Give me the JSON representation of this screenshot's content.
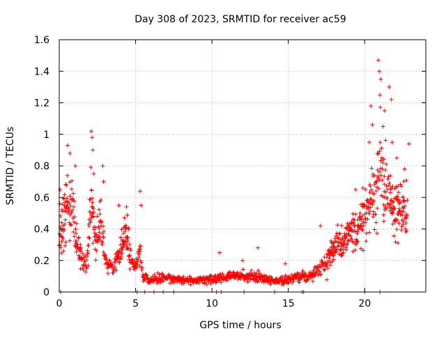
{
  "chart_data": {
    "type": "scatter",
    "title": "Day 308 of 2023, SRMTID for receiver ac59",
    "xlabel": "GPS time / hours",
    "ylabel": "SRMTID / TECUs",
    "xlim": [
      0,
      24
    ],
    "ylim": [
      0,
      1.6
    ],
    "grid": true,
    "marker": "+",
    "color": "#ff0000",
    "x_ticks": [
      "0",
      "5",
      "10",
      "15",
      "20"
    ],
    "y_ticks": [
      "0",
      "0.2",
      "0.4",
      "0.6",
      "0.8",
      "1",
      "1.2",
      "1.4",
      "1.6"
    ],
    "series": [
      {
        "name": "SRMTID",
        "profile": [
          {
            "x": 0.0,
            "y": 0.35
          },
          {
            "x": 0.3,
            "y": 0.5
          },
          {
            "x": 0.6,
            "y": 0.6
          },
          {
            "x": 0.9,
            "y": 0.55
          },
          {
            "x": 1.1,
            "y": 0.35
          },
          {
            "x": 1.5,
            "y": 0.2
          },
          {
            "x": 1.8,
            "y": 0.15
          },
          {
            "x": 2.0,
            "y": 0.5
          },
          {
            "x": 2.1,
            "y": 0.6
          },
          {
            "x": 2.4,
            "y": 0.3
          },
          {
            "x": 2.7,
            "y": 0.5
          },
          {
            "x": 3.0,
            "y": 0.2
          },
          {
            "x": 3.5,
            "y": 0.15
          },
          {
            "x": 4.0,
            "y": 0.25
          },
          {
            "x": 4.4,
            "y": 0.4
          },
          {
            "x": 4.7,
            "y": 0.2
          },
          {
            "x": 5.0,
            "y": 0.15
          },
          {
            "x": 5.3,
            "y": 0.25
          },
          {
            "x": 5.5,
            "y": 0.1
          },
          {
            "x": 6.0,
            "y": 0.08
          },
          {
            "x": 7.0,
            "y": 0.09
          },
          {
            "x": 8.0,
            "y": 0.08
          },
          {
            "x": 9.0,
            "y": 0.07
          },
          {
            "x": 10.0,
            "y": 0.08
          },
          {
            "x": 11.0,
            "y": 0.1
          },
          {
            "x": 12.0,
            "y": 0.1
          },
          {
            "x": 13.0,
            "y": 0.1
          },
          {
            "x": 14.0,
            "y": 0.07
          },
          {
            "x": 15.0,
            "y": 0.08
          },
          {
            "x": 16.0,
            "y": 0.1
          },
          {
            "x": 16.5,
            "y": 0.1
          },
          {
            "x": 17.0,
            "y": 0.15
          },
          {
            "x": 17.5,
            "y": 0.2
          },
          {
            "x": 18.0,
            "y": 0.3
          },
          {
            "x": 18.5,
            "y": 0.3
          },
          {
            "x": 19.0,
            "y": 0.35
          },
          {
            "x": 19.5,
            "y": 0.4
          },
          {
            "x": 20.0,
            "y": 0.5
          },
          {
            "x": 20.5,
            "y": 0.6
          },
          {
            "x": 21.0,
            "y": 0.8
          },
          {
            "x": 21.5,
            "y": 0.6
          },
          {
            "x": 22.0,
            "y": 0.5
          },
          {
            "x": 22.5,
            "y": 0.5
          },
          {
            "x": 22.8,
            "y": 0.5
          }
        ],
        "notable_points": [
          {
            "x": 0.05,
            "y": 0.65
          },
          {
            "x": 0.55,
            "y": 0.93
          },
          {
            "x": 0.7,
            "y": 0.88
          },
          {
            "x": 1.05,
            "y": 0.8
          },
          {
            "x": 2.1,
            "y": 1.02
          },
          {
            "x": 2.15,
            "y": 0.98
          },
          {
            "x": 2.2,
            "y": 0.9
          },
          {
            "x": 2.25,
            "y": 0.75
          },
          {
            "x": 2.85,
            "y": 0.8
          },
          {
            "x": 2.9,
            "y": 0.7
          },
          {
            "x": 3.9,
            "y": 0.55
          },
          {
            "x": 4.4,
            "y": 0.54
          },
          {
            "x": 5.3,
            "y": 0.64
          },
          {
            "x": 5.35,
            "y": 0.55
          },
          {
            "x": 10.5,
            "y": 0.25
          },
          {
            "x": 12.0,
            "y": 0.2
          },
          {
            "x": 13.0,
            "y": 0.28
          },
          {
            "x": 14.8,
            "y": 0.18
          },
          {
            "x": 17.1,
            "y": 0.42
          },
          {
            "x": 19.4,
            "y": 0.65
          },
          {
            "x": 20.3,
            "y": 0.95
          },
          {
            "x": 20.5,
            "y": 1.06
          },
          {
            "x": 20.4,
            "y": 1.18
          },
          {
            "x": 20.9,
            "y": 1.47
          },
          {
            "x": 20.95,
            "y": 1.4
          },
          {
            "x": 21.05,
            "y": 1.35
          },
          {
            "x": 21.0,
            "y": 1.25
          },
          {
            "x": 21.2,
            "y": 1.05
          },
          {
            "x": 21.3,
            "y": 1.15
          },
          {
            "x": 21.6,
            "y": 1.3
          },
          {
            "x": 21.75,
            "y": 1.22
          },
          {
            "x": 21.8,
            "y": 0.95
          },
          {
            "x": 22.1,
            "y": 0.85
          },
          {
            "x": 22.6,
            "y": 0.78
          },
          {
            "x": 22.9,
            "y": 0.94
          }
        ]
      }
    ]
  }
}
